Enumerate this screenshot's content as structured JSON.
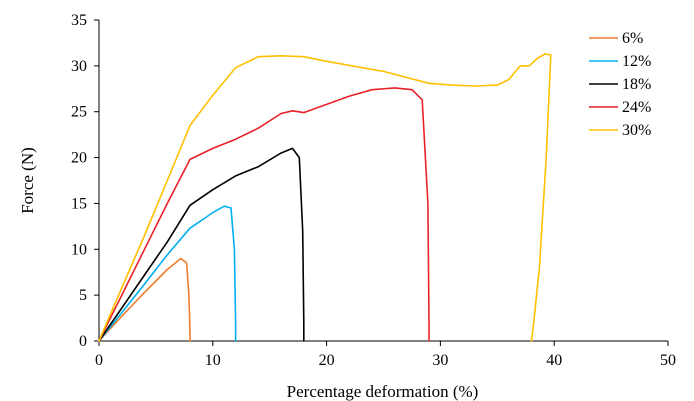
{
  "chart_data": {
    "type": "line",
    "xlabel": "Percentage deformation (%)",
    "ylabel": "Force (N)",
    "xlim": [
      0,
      50
    ],
    "ylim": [
      0,
      35
    ],
    "xticks": [
      0,
      10,
      20,
      30,
      40,
      50
    ],
    "yticks": [
      0,
      5,
      10,
      15,
      20,
      25,
      30,
      35
    ],
    "legend_position": "top-right",
    "grid": false,
    "series": [
      {
        "name": "6%",
        "color": "#ED7D31",
        "x": [
          0,
          2,
          4,
          6,
          7.2,
          7.7,
          7.9,
          8.0,
          8.0
        ],
        "y": [
          0,
          2.7,
          5.3,
          7.8,
          9.0,
          8.5,
          5.0,
          1.0,
          0
        ]
      },
      {
        "name": "12%",
        "color": "#00B0F0",
        "x": [
          0,
          2,
          4,
          6,
          8,
          10,
          11,
          11.6,
          11.9,
          12.0,
          12.0
        ],
        "y": [
          0,
          3.1,
          6.2,
          9.4,
          12.3,
          14.0,
          14.7,
          14.5,
          10.0,
          2.0,
          0
        ]
      },
      {
        "name": "18%",
        "color": "#000000",
        "x": [
          0,
          2,
          4,
          6,
          8,
          10,
          12,
          14,
          16,
          17,
          17.6,
          17.9,
          18.0,
          18.0
        ],
        "y": [
          0,
          3.6,
          7.2,
          10.8,
          14.8,
          16.5,
          18.0,
          19.0,
          20.5,
          21.0,
          20.0,
          12.0,
          2.0,
          0
        ]
      },
      {
        "name": "24%",
        "color": "#E8222A",
        "x": [
          0,
          2,
          4,
          6,
          8,
          10,
          12,
          14,
          16,
          17,
          18,
          20,
          22,
          24,
          26,
          27.5,
          28.4,
          28.9,
          29.0,
          29.0
        ],
        "y": [
          0,
          5.0,
          10.0,
          15.0,
          19.8,
          21.0,
          22.0,
          23.2,
          24.8,
          25.1,
          24.9,
          25.8,
          26.7,
          27.4,
          27.6,
          27.4,
          26.3,
          15.0,
          2.0,
          0
        ]
      },
      {
        "name": "30%",
        "color": "#FFC000",
        "x": [
          0,
          2,
          4,
          6,
          8,
          10,
          12,
          14,
          16,
          18,
          20,
          25,
          29,
          31,
          33,
          35,
          36,
          37,
          37.8,
          38.5,
          39.2,
          39.7,
          39.3,
          38.7,
          38.2,
          38.0
        ],
        "y": [
          0,
          5.8,
          11.5,
          17.5,
          23.5,
          26.8,
          29.8,
          31.0,
          31.1,
          31.0,
          30.5,
          29.4,
          28.1,
          27.9,
          27.8,
          27.9,
          28.5,
          30.0,
          30.0,
          30.8,
          31.3,
          31.2,
          20.0,
          8.0,
          2.0,
          0
        ]
      }
    ]
  }
}
